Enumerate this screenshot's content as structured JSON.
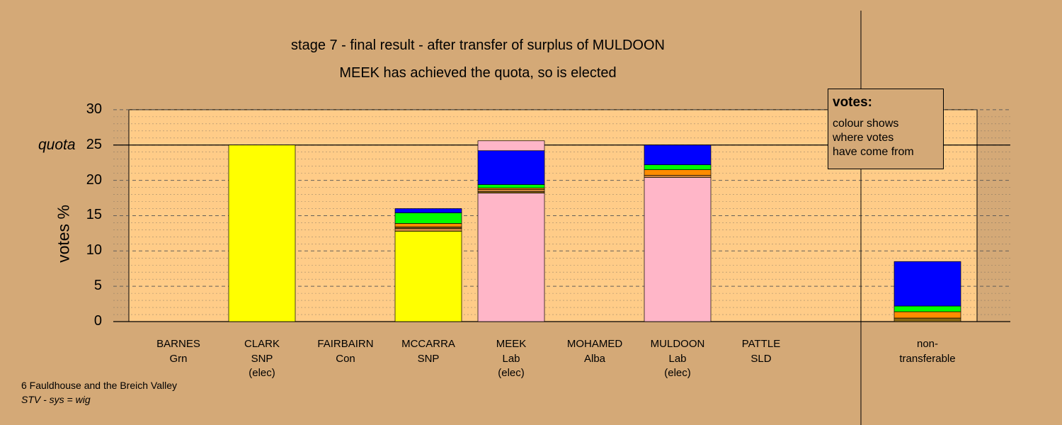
{
  "title": "stage 7 - final result - after transfer of surplus of MULDOON",
  "subtitle": "MEEK has achieved the quota, so is elected",
  "legend": {
    "heading": "votes:",
    "lines": [
      "colour shows",
      "where votes",
      "have come from"
    ]
  },
  "footer": {
    "line1": "6 Fauldhouse and the Breich Valley",
    "line2": "STV - sys = wig"
  },
  "chart_data": {
    "type": "bar",
    "stacked": true,
    "ylabel": "votes %",
    "yticks": [
      "0",
      "5",
      "10",
      "15",
      "20",
      "25",
      "30"
    ],
    "ylim": [
      0,
      30
    ],
    "quota_label": "quota",
    "quota_value": 25,
    "grid": true,
    "colors": {
      "SNP": "#ffff00",
      "Lab": "#ffb6c8",
      "Con": "#0000ff",
      "Grn": "#00ff00",
      "Alba": "#ff8c00",
      "SLD": "#cd853f",
      "other": "#8b6914",
      "plot_bg": "#ffcc88"
    },
    "categories": [
      {
        "name": "BARNES",
        "party": "Grn",
        "status": "",
        "segments": []
      },
      {
        "name": "CLARK",
        "party": "SNP",
        "status": "(elec)",
        "segments": [
          {
            "from": "SNP",
            "value": 25.0
          }
        ]
      },
      {
        "name": "FAIRBAIRN",
        "party": "Con",
        "status": "",
        "segments": []
      },
      {
        "name": "MCCARRA",
        "party": "SNP",
        "status": "",
        "segments": [
          {
            "from": "SNP",
            "value": 12.8
          },
          {
            "from": "SLD",
            "value": 0.4
          },
          {
            "from": "other",
            "value": 0.2
          },
          {
            "from": "Alba",
            "value": 0.5
          },
          {
            "from": "Grn",
            "value": 1.5
          },
          {
            "from": "Con",
            "value": 0.6
          }
        ]
      },
      {
        "name": "MEEK",
        "party": "Lab",
        "status": "(elec)",
        "segments": [
          {
            "from": "Lab",
            "value": 18.2
          },
          {
            "from": "other",
            "value": 0.2
          },
          {
            "from": "SLD",
            "value": 0.3
          },
          {
            "from": "Alba",
            "value": 0.2
          },
          {
            "from": "Grn",
            "value": 0.5
          },
          {
            "from": "Con",
            "value": 4.8
          },
          {
            "from": "Lab",
            "value": 1.4
          }
        ]
      },
      {
        "name": "MOHAMED",
        "party": "Alba",
        "status": "",
        "segments": []
      },
      {
        "name": "MULDOON",
        "party": "Lab",
        "status": "(elec)",
        "segments": [
          {
            "from": "Lab",
            "value": 20.4
          },
          {
            "from": "SLD",
            "value": 0.3
          },
          {
            "from": "Alba",
            "value": 0.8
          },
          {
            "from": "Grn",
            "value": 0.7
          },
          {
            "from": "Con",
            "value": 2.8
          }
        ]
      },
      {
        "name": "PATTLE",
        "party": "SLD",
        "status": "",
        "segments": []
      },
      {
        "name": "non-",
        "party": "transferable",
        "status": "",
        "segments": [
          {
            "from": "other",
            "value": 0.5
          },
          {
            "from": "Alba",
            "value": 0.9
          },
          {
            "from": "Grn",
            "value": 0.8
          },
          {
            "from": "Con",
            "value": 6.3
          }
        ]
      }
    ]
  }
}
